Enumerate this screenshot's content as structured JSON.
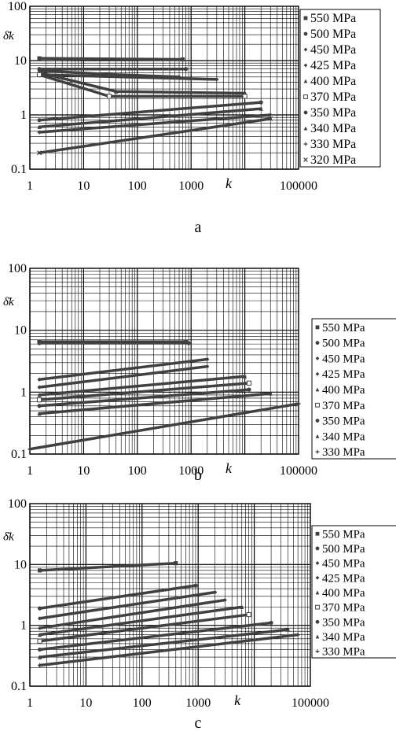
{
  "chart_data": [
    {
      "type": "line",
      "panel_label": "a",
      "ylabel": "δ̄k",
      "xlabel": "k",
      "xscale": "log",
      "yscale": "log",
      "xlim": [
        1,
        100000
      ],
      "ylim": [
        0.1,
        100
      ],
      "x_ticks": [
        "1",
        "10",
        "100",
        "1000",
        "100000"
      ],
      "y_ticks": [
        "0.1",
        "1",
        "10",
        "100"
      ],
      "grid": true,
      "legend_position": "top-right",
      "series": [
        {
          "name": "550 MPa",
          "marker": "square",
          "x": [
            1.5,
            700
          ],
          "y": [
            11,
            10.5
          ]
        },
        {
          "name": "500 MPa",
          "marker": "circle",
          "x": [
            1.5,
            800
          ],
          "y": [
            7,
            7
          ]
        },
        {
          "name": "450 MPa",
          "marker": "diamond",
          "x": [
            1.5,
            40,
            600
          ],
          "y": [
            6.5,
            5.5,
            5
          ]
        },
        {
          "name": "425 MPa",
          "marker": "diamond",
          "x": [
            1.5,
            3000
          ],
          "y": [
            5.5,
            4.5
          ]
        },
        {
          "name": "400 MPa",
          "marker": "triangle",
          "x": [
            1.5,
            40,
            10000
          ],
          "y": [
            6,
            2.7,
            2.5
          ]
        },
        {
          "name": "370 MPa",
          "marker": "square-open",
          "x": [
            1.5,
            30,
            10000
          ],
          "y": [
            5.5,
            2.2,
            2.2
          ]
        },
        {
          "name": "350 MPa",
          "marker": "circle",
          "x": [
            1.5,
            20000
          ],
          "y": [
            0.8,
            1.7
          ]
        },
        {
          "name": "340 MPa",
          "marker": "triangle",
          "x": [
            1.5,
            20000
          ],
          "y": [
            0.6,
            1.3
          ]
        },
        {
          "name": "330 MPa",
          "marker": "plus",
          "x": [
            1.5,
            30000
          ],
          "y": [
            0.48,
            1.0
          ]
        },
        {
          "name": "320 MPa",
          "marker": "cross",
          "x": [
            1.5,
            30000
          ],
          "y": [
            0.2,
            0.85
          ]
        }
      ]
    },
    {
      "type": "line",
      "panel_label": "b",
      "ylabel": "δ̄k",
      "xlabel": "k",
      "xscale": "log",
      "yscale": "log",
      "xlim": [
        1,
        100000
      ],
      "ylim": [
        0.1,
        100
      ],
      "x_ticks": [
        "1",
        "10",
        "100",
        "1000",
        "100000"
      ],
      "y_ticks": [
        "0.1",
        "1",
        "10",
        "100"
      ],
      "grid": true,
      "legend_position": "right",
      "series": [
        {
          "name": "550 MPa",
          "marker": "square",
          "x": [
            1.5,
            800
          ],
          "y": [
            6.5,
            6.5
          ]
        },
        {
          "name": "500 MPa",
          "marker": "circle",
          "x": [
            1.5,
            900
          ],
          "y": [
            6.2,
            6.2
          ]
        },
        {
          "name": "450 MPa",
          "marker": "diamond",
          "x": [
            1.5,
            2000
          ],
          "y": [
            1.6,
            3.4
          ]
        },
        {
          "name": "425 MPa",
          "marker": "diamond",
          "x": [
            1.5,
            2000
          ],
          "y": [
            1.2,
            2.6
          ]
        },
        {
          "name": "400 MPa",
          "marker": "triangle",
          "x": [
            1.5,
            10000
          ],
          "y": [
            0.9,
            1.8
          ]
        },
        {
          "name": "370 MPa",
          "marker": "square-open",
          "x": [
            1.5,
            12000
          ],
          "y": [
            0.75,
            1.4
          ]
        },
        {
          "name": "350 MPa",
          "marker": "circle",
          "x": [
            1.5,
            12000
          ],
          "y": [
            0.6,
            1.1
          ]
        },
        {
          "name": "340 MPa",
          "marker": "triangle",
          "x": [
            1.5,
            30000
          ],
          "y": [
            0.45,
            0.95
          ]
        },
        {
          "name": "330 MPa",
          "marker": "plus",
          "x": [
            1,
            100000
          ],
          "y": [
            0.12,
            0.65
          ]
        }
      ]
    },
    {
      "type": "line",
      "panel_label": "c",
      "ylabel": "δ̄k",
      "xlabel": "k",
      "xscale": "log",
      "yscale": "log",
      "xlim": [
        1,
        100000
      ],
      "ylim": [
        0.1,
        100
      ],
      "x_ticks": [
        "1",
        "10",
        "100",
        "1000",
        "100000"
      ],
      "y_ticks": [
        "0.1",
        "1",
        "10",
        "100"
      ],
      "grid": true,
      "legend_position": "right",
      "series": [
        {
          "name": "550 MPa",
          "marker": "square",
          "x": [
            1.5,
            400
          ],
          "y": [
            8,
            10.5
          ]
        },
        {
          "name": "500 MPa",
          "marker": "circle",
          "x": [
            1.5,
            900
          ],
          "y": [
            1.9,
            4.5
          ]
        },
        {
          "name": "450 MPa",
          "marker": "diamond",
          "x": [
            1.5,
            2000
          ],
          "y": [
            1.3,
            3.5
          ]
        },
        {
          "name": "425 MPa",
          "marker": "diamond",
          "x": [
            1.5,
            3000
          ],
          "y": [
            0.9,
            2.6
          ]
        },
        {
          "name": "400 MPa",
          "marker": "triangle",
          "x": [
            1.5,
            6000
          ],
          "y": [
            0.7,
            2.0
          ]
        },
        {
          "name": "370 MPa",
          "marker": "square-open",
          "x": [
            1.5,
            8000
          ],
          "y": [
            0.55,
            1.5
          ]
        },
        {
          "name": "350 MPa",
          "marker": "circle",
          "x": [
            1.5,
            20000
          ],
          "y": [
            0.4,
            1.1
          ]
        },
        {
          "name": "340 MPa",
          "marker": "triangle",
          "x": [
            1.5,
            40000
          ],
          "y": [
            0.3,
            0.85
          ]
        },
        {
          "name": "330 MPa",
          "marker": "plus",
          "x": [
            1.5,
            60000
          ],
          "y": [
            0.22,
            0.7
          ]
        }
      ]
    }
  ],
  "captions": [
    "a",
    "b",
    "c"
  ],
  "colors": {
    "line": "#404040",
    "grid": "#000000",
    "background": "#ffffff"
  }
}
